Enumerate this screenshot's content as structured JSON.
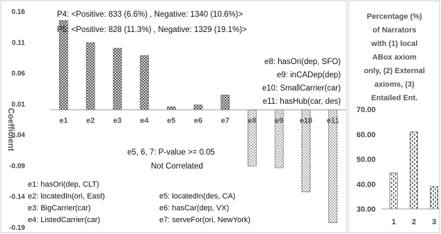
{
  "chart_data": [
    {
      "type": "bar",
      "ylabel": "Coefficient",
      "ylim": [
        -0.19,
        0.16
      ],
      "yticks": [
        "0.16",
        "0.11",
        "0.06",
        "0.01",
        "-0.04",
        "-0.09",
        "-0.14",
        "-0.19"
      ],
      "categories": [
        "e1",
        "e2",
        "e3",
        "e4",
        "e5",
        "e6",
        "e7",
        "e8",
        "e9",
        "e10",
        "e11"
      ],
      "values": [
        0.145,
        0.109,
        0.1,
        0.088,
        0.005,
        0.008,
        0.024,
        -0.091,
        -0.094,
        -0.133,
        -0.183
      ],
      "pattern_groups": {
        "crosshatch": [
          "e1",
          "e2",
          "e3",
          "e4",
          "e5",
          "e6",
          "e7"
        ],
        "dotted": [
          "e8",
          "e9",
          "e10",
          "e11"
        ]
      },
      "annotations": {
        "p4": "P4:  <Positive:  833 (6.6%) ,  Negative: 1340 (10.6%)>",
        "p5": "P5:  <Positive:  828 (11.3%) ,  Negative: 1329 (19.1%)>",
        "right_defs": [
          "e8: hasOri(dep, SFO)",
          "e9: inCADep(dep)",
          "e10: SmallCarrier(car)",
          "e11: hasHub(car, des)"
        ],
        "pvalue": "e5, 6, 7:  P-value >= 0.05",
        "not_correlated": "Not Correlated",
        "left_defs": [
          "e1: hasOri(dep, CLT)",
          "e2: locatedIn(ori, East)",
          "e3: BigCarrier(car)",
          "e4: ListedCarrier(car)"
        ],
        "mid_defs": [
          "e5: locatedIn(des, CA)",
          "e6: hasCar(dep, VX)",
          "e7: serveFor(ori, NewYork)"
        ]
      }
    },
    {
      "type": "bar",
      "title_lines": [
        "Percentage (%)",
        "of Narrators",
        "with (1) local",
        "ABox axiom",
        "only, (2) External",
        "axioms, (3)",
        "Entailed Ent."
      ],
      "ylim": [
        30,
        70
      ],
      "yticks": [
        "70.00",
        "60.00",
        "50.00",
        "40.00",
        "30.00"
      ],
      "categories": [
        "1",
        "2",
        "3"
      ],
      "values": [
        44.5,
        61.0,
        39.0
      ]
    }
  ]
}
